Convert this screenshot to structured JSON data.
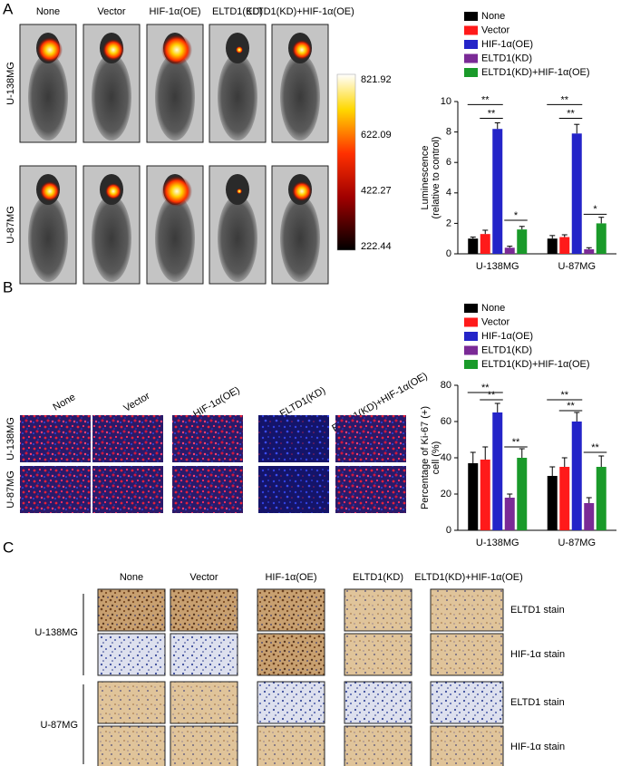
{
  "panel_a": {
    "label": "A",
    "columns": [
      "None",
      "Vector",
      "HIF-1α(OE)",
      "ELTD1(KD)",
      "ELTD1(KD)+HIF-1α(OE)"
    ],
    "rows": [
      "U-138MG",
      "U-87MG"
    ],
    "colorbar_ticks": [
      821.92,
      622.09,
      422.27,
      222.44
    ]
  },
  "panel_b": {
    "label": "B",
    "columns": [
      "None",
      "Vector",
      "HIF-1α(OE)",
      "ELTD1(KD)",
      "ELTD1(KD)+HIF-1α(OE)"
    ],
    "rows": [
      "U-138MG",
      "U-87MG"
    ]
  },
  "panel_c": {
    "label": "C",
    "columns": [
      "None",
      "Vector",
      "HIF-1α(OE)",
      "ELTD1(KD)",
      "ELTD1(KD)+HIF-1α(OE)"
    ],
    "rows": [
      "U-138MG",
      "U-87MG"
    ],
    "stains": [
      "ELTD1 stain",
      "HIF-1α stain"
    ]
  },
  "chart_data": [
    {
      "type": "bar",
      "ylabel": [
        "Luminescence",
        "(relative to control)"
      ],
      "categories": [
        "U-138MG",
        "U-87MG"
      ],
      "series": [
        {
          "name": "None",
          "color": "#000000",
          "values": [
            1.0,
            1.0
          ],
          "errors": [
            0.1,
            0.2
          ]
        },
        {
          "name": "Vector",
          "color": "#ff1a1a",
          "values": [
            1.3,
            1.1
          ],
          "errors": [
            0.25,
            0.15
          ]
        },
        {
          "name": "HIF-1α(OE)",
          "color": "#2424c8",
          "values": [
            8.2,
            7.9
          ],
          "errors": [
            0.4,
            0.6
          ]
        },
        {
          "name": "ELTD1(KD)",
          "color": "#7a2a96",
          "values": [
            0.4,
            0.3
          ],
          "errors": [
            0.1,
            0.1
          ]
        },
        {
          "name": "ELTD1(KD)+HIF-1α(OE)",
          "color": "#1a9a2a",
          "values": [
            1.6,
            2.0
          ],
          "errors": [
            0.2,
            0.4
          ]
        }
      ],
      "ylim": [
        0,
        10
      ],
      "yticks": [
        0,
        2,
        4,
        6,
        8,
        10
      ],
      "annotations": [
        "**",
        "**",
        "*",
        "**",
        "**",
        "*"
      ]
    },
    {
      "type": "bar",
      "ylabel": [
        "Percentage of Ki-67 (+)",
        "cell (%)"
      ],
      "categories": [
        "U-138MG",
        "U-87MG"
      ],
      "series": [
        {
          "name": "None",
          "color": "#000000",
          "values": [
            37,
            30
          ],
          "errors": [
            6,
            5
          ]
        },
        {
          "name": "Vector",
          "color": "#ff1a1a",
          "values": [
            39,
            35
          ],
          "errors": [
            7,
            5
          ]
        },
        {
          "name": "HIF-1α(OE)",
          "color": "#2424c8",
          "values": [
            65,
            60
          ],
          "errors": [
            5,
            5
          ]
        },
        {
          "name": "ELTD1(KD)",
          "color": "#7a2a96",
          "values": [
            18,
            15
          ],
          "errors": [
            2,
            3
          ]
        },
        {
          "name": "ELTD1(KD)+HIF-1α(OE)",
          "color": "#1a9a2a",
          "values": [
            40,
            35
          ],
          "errors": [
            5,
            6
          ]
        }
      ],
      "ylim": [
        0,
        80
      ],
      "yticks": [
        0,
        20,
        40,
        60,
        80
      ],
      "annotations": [
        "**",
        "**",
        "**",
        "**",
        "**",
        "**"
      ]
    }
  ]
}
